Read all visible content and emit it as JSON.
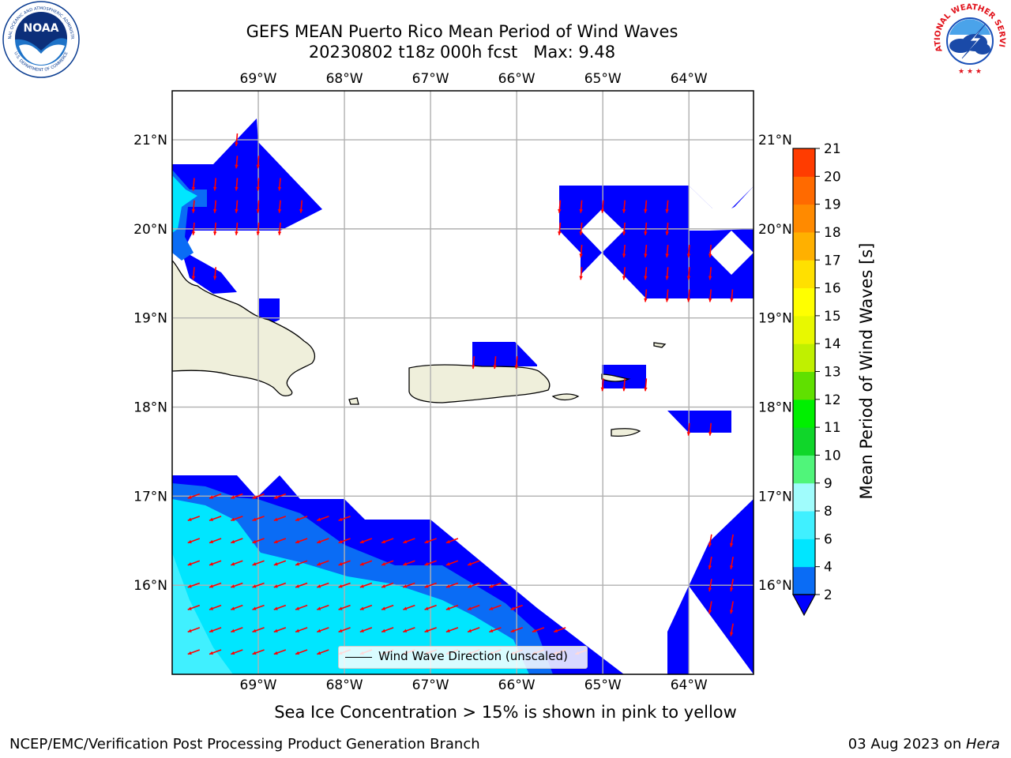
{
  "header": {
    "title_line1": "GEFS MEAN Puerto Rico Mean Period of Wind Waves",
    "title_line2": "20230802 t18z 000h fcst   Max: 9.48"
  },
  "logos": {
    "left": "NOAA",
    "left_ring_top": "NATIONAL OCEANIC AND ATMOSPHERIC ADMINISTRATION",
    "left_ring_bottom": "U.S. DEPARTMENT OF COMMERCE",
    "right_ring": "NATIONAL WEATHER SERVICE"
  },
  "map": {
    "lon_labels": [
      "69°W",
      "68°W",
      "67°W",
      "66°W",
      "65°W",
      "64°W"
    ],
    "lon_values": [
      -69,
      -68,
      -67,
      -66,
      -65,
      -64
    ],
    "lat_labels": [
      "21°N",
      "20°N",
      "19°N",
      "18°N",
      "17°N",
      "16°N"
    ],
    "lat_values": [
      21,
      20,
      19,
      18,
      17,
      16
    ],
    "lon_range": [
      -70.0,
      -63.25
    ],
    "lat_range": [
      15.0,
      21.55
    ],
    "grid": true,
    "legend_label": "Wind Wave Direction (unscaled)",
    "arrow_color": "#ff0000",
    "land_color": "#efefdb",
    "ocean_color": "#ffffff"
  },
  "colorbar": {
    "label": "Mean Period of Wind Waves [s]",
    "ticks": [
      "2",
      "4",
      "6",
      "8",
      "9",
      "10",
      "11",
      "12",
      "13",
      "14",
      "15",
      "16",
      "17",
      "18",
      "19",
      "20",
      "21"
    ],
    "levels": [
      2,
      4,
      6,
      8,
      9,
      10,
      11,
      12,
      13,
      14,
      15,
      16,
      17,
      18,
      19,
      20,
      21
    ],
    "colors": [
      "#0a6cf5",
      "#00e6ff",
      "#40f0ff",
      "#a0fcfc",
      "#50f57a",
      "#10d62a",
      "#00f000",
      "#60e000",
      "#c0f000",
      "#e8f800",
      "#ffff00",
      "#ffe000",
      "#ffb000",
      "#ff8a00",
      "#ff6a00",
      "#ff3c00",
      "#ff0000"
    ],
    "under_color": "#0000ff",
    "extend": "min"
  },
  "caption": "Sea Ice Concentration > 15% is shown in pink to yellow",
  "footer": {
    "left": "NCEP/EMC/Verification Post Processing Product Generation Branch",
    "right_prefix": "03 Aug 2023 on ",
    "right_host": "Hera"
  }
}
